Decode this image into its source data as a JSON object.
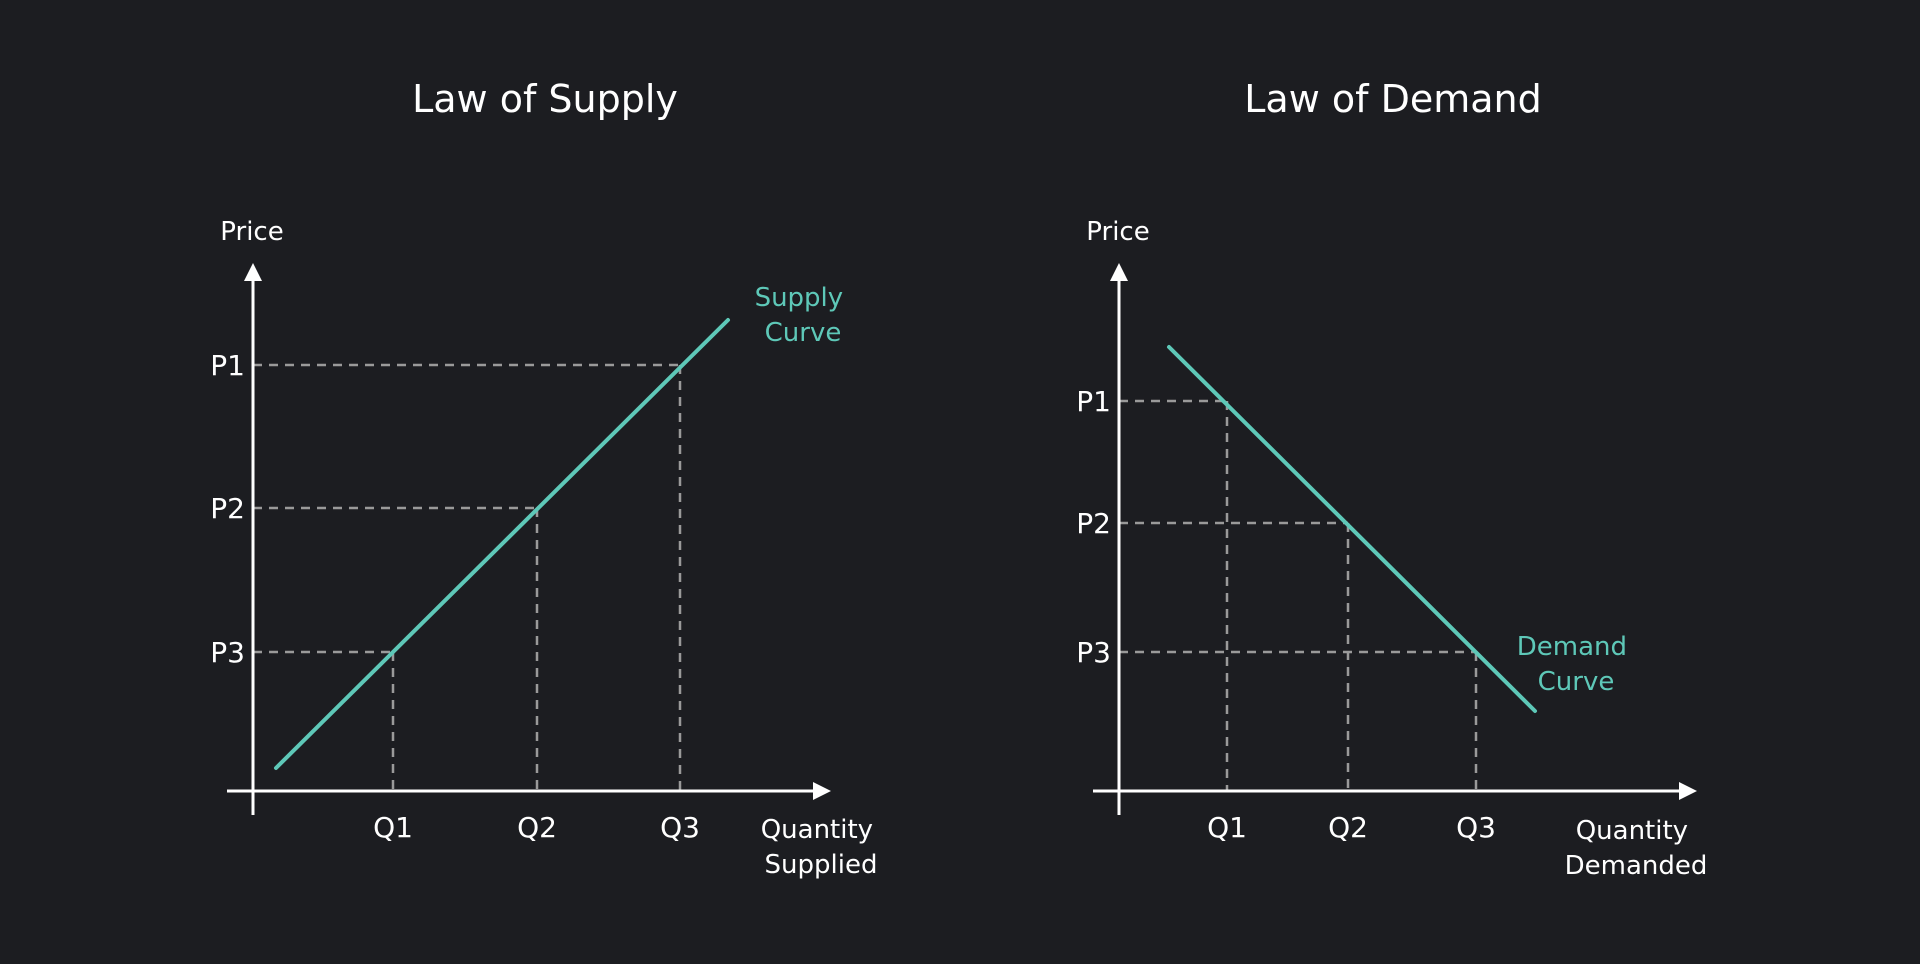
{
  "colors": {
    "background": "#1c1d21",
    "axis": "#ffffff",
    "guide": "#9a9a9a",
    "curve": "#5ec8b8"
  },
  "chart_data": [
    {
      "type": "line",
      "title": "Law of Supply",
      "ylabel": "Price",
      "xlabel_lines": [
        "Quantity",
        "Supplied"
      ],
      "x_ticks": [
        "Q1",
        "Q2",
        "Q3"
      ],
      "y_ticks": [
        "P1",
        "P2",
        "P3"
      ],
      "points": [
        {
          "x": "Q1",
          "y": "P3"
        },
        {
          "x": "Q2",
          "y": "P2"
        },
        {
          "x": "Q3",
          "y": "P1"
        }
      ],
      "series": [
        {
          "name_lines": [
            "Supply",
            "Curve"
          ],
          "direction": "upward"
        }
      ]
    },
    {
      "type": "line",
      "title": "Law of Demand",
      "ylabel": "Price",
      "xlabel_lines": [
        "Quantity",
        "Demanded"
      ],
      "x_ticks": [
        "Q1",
        "Q2",
        "Q3"
      ],
      "y_ticks": [
        "P1",
        "P2",
        "P3"
      ],
      "points": [
        {
          "x": "Q1",
          "y": "P1"
        },
        {
          "x": "Q2",
          "y": "P2"
        },
        {
          "x": "Q3",
          "y": "P3"
        }
      ],
      "series": [
        {
          "name_lines": [
            "Demand",
            "Curve"
          ],
          "direction": "downward"
        }
      ]
    }
  ]
}
